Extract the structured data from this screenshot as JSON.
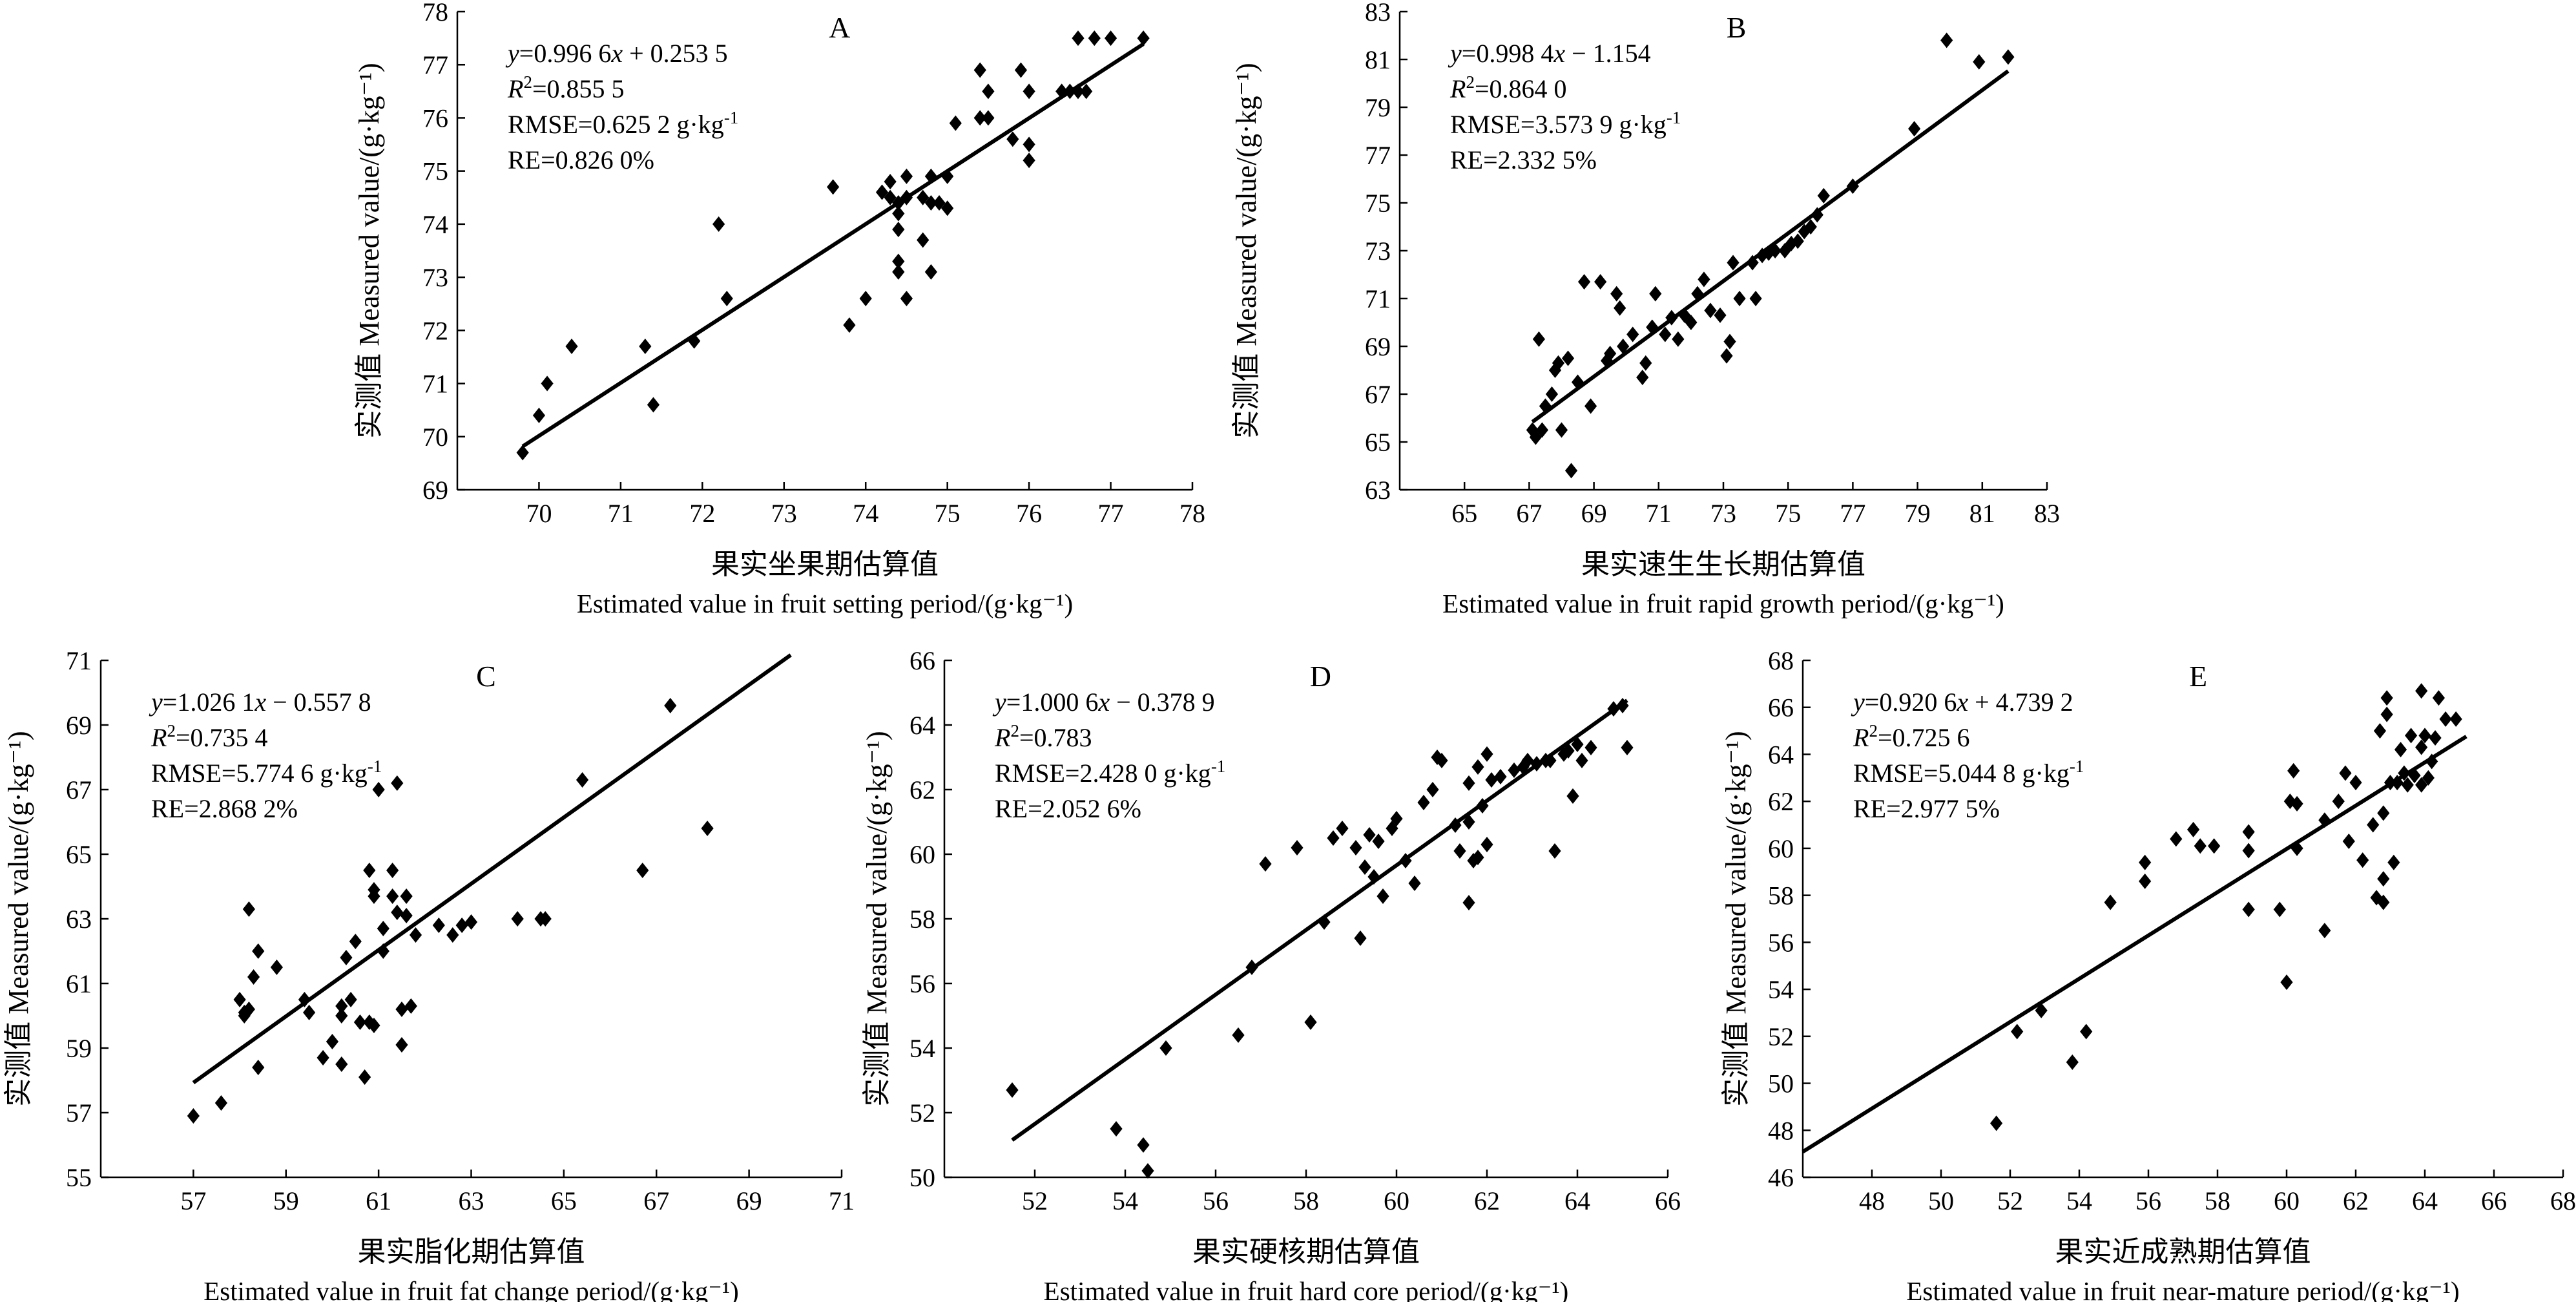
{
  "chart_data": [
    {
      "id": "A",
      "type": "scatter",
      "panel_letter": "A",
      "title": "",
      "ylabel": "实测值 Measured value/(g·kg⁻¹)",
      "xlabel_cn": "果实坐果期估算值",
      "xlabel_en": "Estimated value in fruit setting period/(g·kg⁻¹)",
      "xlim": [
        69,
        78
      ],
      "ylim": [
        69,
        78
      ],
      "xticks": [
        70,
        71,
        72,
        73,
        74,
        75,
        76,
        77,
        78
      ],
      "yticks": [
        69,
        70,
        71,
        72,
        73,
        74,
        75,
        76,
        77,
        78
      ],
      "fit": {
        "slope": 0.9966,
        "intercept": 0.2535,
        "x_range": [
          69.8,
          77.4
        ]
      },
      "annotations": [
        "y=0.996 6x + 0.253 5",
        "R2=0.855 5",
        "RMSE=0.625 2 g·kg-1",
        "RE=0.826 0%"
      ],
      "points": [
        [
          69.8,
          69.7
        ],
        [
          70.0,
          70.4
        ],
        [
          70.1,
          71.0
        ],
        [
          70.4,
          71.7
        ],
        [
          71.3,
          71.7
        ],
        [
          71.4,
          70.6
        ],
        [
          71.9,
          71.8
        ],
        [
          72.2,
          74.0
        ],
        [
          72.3,
          72.6
        ],
        [
          73.6,
          74.7
        ],
        [
          73.8,
          72.1
        ],
        [
          74.0,
          72.6
        ],
        [
          74.2,
          74.6
        ],
        [
          74.3,
          74.8
        ],
        [
          74.3,
          74.5
        ],
        [
          74.4,
          74.4
        ],
        [
          74.4,
          74.2
        ],
        [
          74.4,
          73.9
        ],
        [
          74.4,
          73.3
        ],
        [
          74.4,
          73.1
        ],
        [
          74.5,
          74.5
        ],
        [
          74.5,
          72.6
        ],
        [
          74.5,
          74.9
        ],
        [
          74.7,
          73.7
        ],
        [
          74.7,
          74.5
        ],
        [
          74.8,
          74.9
        ],
        [
          74.8,
          74.4
        ],
        [
          74.8,
          73.1
        ],
        [
          74.9,
          74.4
        ],
        [
          75.0,
          74.9
        ],
        [
          75.0,
          74.3
        ],
        [
          75.1,
          75.9
        ],
        [
          75.4,
          76.9
        ],
        [
          75.4,
          76.0
        ],
        [
          75.5,
          76.5
        ],
        [
          75.5,
          76.0
        ],
        [
          75.8,
          75.6
        ],
        [
          75.9,
          76.9
        ],
        [
          76.0,
          75.5
        ],
        [
          76.0,
          75.2
        ],
        [
          76.0,
          76.5
        ],
        [
          76.4,
          76.5
        ],
        [
          76.5,
          76.5
        ],
        [
          76.6,
          77.5
        ],
        [
          76.6,
          76.5
        ],
        [
          76.7,
          76.5
        ],
        [
          76.8,
          77.5
        ],
        [
          77.0,
          77.5
        ],
        [
          77.4,
          77.5
        ]
      ]
    },
    {
      "id": "B",
      "type": "scatter",
      "panel_letter": "B",
      "title": "",
      "ylabel": "实测值 Measured value/(g·kg⁻¹)",
      "xlabel_cn": "果实速生生长期估算值",
      "xlabel_en": "Estimated value in fruit rapid growth period/(g·kg⁻¹)",
      "xlim": [
        63,
        83
      ],
      "ylim": [
        63,
        83
      ],
      "xticks": [
        65,
        67,
        69,
        71,
        73,
        75,
        77,
        79,
        81,
        83
      ],
      "yticks": [
        63,
        65,
        67,
        69,
        71,
        73,
        75,
        77,
        79,
        81,
        83
      ],
      "fit": {
        "slope": 0.9984,
        "intercept": -1.154,
        "x_range": [
          67.1,
          81.8
        ]
      },
      "annotations": [
        "y=0.998 4x − 1.154",
        "R2=0.864 0",
        "RMSE=3.573 9 g·kg-1",
        "RE=2.332 5%"
      ],
      "points": [
        [
          67.1,
          65.5
        ],
        [
          67.2,
          65.2
        ],
        [
          67.3,
          69.3
        ],
        [
          67.4,
          65.5
        ],
        [
          67.5,
          66.5
        ],
        [
          67.7,
          67.0
        ],
        [
          67.8,
          68.0
        ],
        [
          67.9,
          68.3
        ],
        [
          68.0,
          65.5
        ],
        [
          68.2,
          68.5
        ],
        [
          68.3,
          63.8
        ],
        [
          68.5,
          67.5
        ],
        [
          68.7,
          71.7
        ],
        [
          68.9,
          66.5
        ],
        [
          69.2,
          71.7
        ],
        [
          69.4,
          68.4
        ],
        [
          69.5,
          68.7
        ],
        [
          69.7,
          71.2
        ],
        [
          69.8,
          70.6
        ],
        [
          69.9,
          69.0
        ],
        [
          70.2,
          69.5
        ],
        [
          70.5,
          67.7
        ],
        [
          70.6,
          68.3
        ],
        [
          70.8,
          69.8
        ],
        [
          70.9,
          71.2
        ],
        [
          71.2,
          69.5
        ],
        [
          71.4,
          70.2
        ],
        [
          71.6,
          69.3
        ],
        [
          71.8,
          70.3
        ],
        [
          72.0,
          70.0
        ],
        [
          72.2,
          71.2
        ],
        [
          72.4,
          71.8
        ],
        [
          72.6,
          70.5
        ],
        [
          72.9,
          70.3
        ],
        [
          73.1,
          68.6
        ],
        [
          73.2,
          69.2
        ],
        [
          73.3,
          72.5
        ],
        [
          73.5,
          71.0
        ],
        [
          73.9,
          72.5
        ],
        [
          74.0,
          71.0
        ],
        [
          74.2,
          72.8
        ],
        [
          74.4,
          72.9
        ],
        [
          74.6,
          73.0
        ],
        [
          74.9,
          73.0
        ],
        [
          75.1,
          73.3
        ],
        [
          75.3,
          73.4
        ],
        [
          75.5,
          73.8
        ],
        [
          75.7,
          74.0
        ],
        [
          75.9,
          74.5
        ],
        [
          76.1,
          75.3
        ],
        [
          77.0,
          75.7
        ],
        [
          78.9,
          78.1
        ],
        [
          79.9,
          81.8
        ],
        [
          80.9,
          80.9
        ],
        [
          81.8,
          81.1
        ]
      ]
    },
    {
      "id": "C",
      "type": "scatter",
      "panel_letter": "C",
      "title": "",
      "ylabel": "实测值 Measured value/(g·kg⁻¹)",
      "xlabel_cn": "果实脂化期估算值",
      "xlabel_en": "Estimated value in fruit fat change period/(g·kg⁻¹)",
      "xlim": [
        55,
        71
      ],
      "ylim": [
        55,
        71
      ],
      "xticks": [
        57,
        59,
        61,
        63,
        65,
        67,
        69,
        71
      ],
      "yticks": [
        55,
        57,
        59,
        61,
        63,
        65,
        67,
        69,
        71
      ],
      "fit": {
        "slope": 1.0261,
        "intercept": -0.5578,
        "x_range": [
          57.0,
          69.9
        ]
      },
      "annotations": [
        "y=1.026 1x − 0.557 8",
        "R2=0.735 4",
        "RMSE=5.774 6 g·kg-1",
        "RE=2.868 2%"
      ],
      "points": [
        [
          57.0,
          56.9
        ],
        [
          57.6,
          57.3
        ],
        [
          58.0,
          60.5
        ],
        [
          58.1,
          60.1
        ],
        [
          58.1,
          60.0
        ],
        [
          58.2,
          60.2
        ],
        [
          58.2,
          63.3
        ],
        [
          58.3,
          61.2
        ],
        [
          58.4,
          62.0
        ],
        [
          58.4,
          58.4
        ],
        [
          58.8,
          61.5
        ],
        [
          59.4,
          60.5
        ],
        [
          59.5,
          60.1
        ],
        [
          59.8,
          58.7
        ],
        [
          60.0,
          59.2
        ],
        [
          60.2,
          60.3
        ],
        [
          60.2,
          60.0
        ],
        [
          60.2,
          58.5
        ],
        [
          60.3,
          61.8
        ],
        [
          60.4,
          60.5
        ],
        [
          60.5,
          62.3
        ],
        [
          60.6,
          59.8
        ],
        [
          60.7,
          58.1
        ],
        [
          60.8,
          64.5
        ],
        [
          60.8,
          59.8
        ],
        [
          60.9,
          63.7
        ],
        [
          60.9,
          59.7
        ],
        [
          60.9,
          63.9
        ],
        [
          61.0,
          67.0
        ],
        [
          61.1,
          62.7
        ],
        [
          61.1,
          62.0
        ],
        [
          61.3,
          63.7
        ],
        [
          61.3,
          64.5
        ],
        [
          61.4,
          67.2
        ],
        [
          61.4,
          63.2
        ],
        [
          61.5,
          59.1
        ],
        [
          61.5,
          60.2
        ],
        [
          61.6,
          63.7
        ],
        [
          61.6,
          63.1
        ],
        [
          61.7,
          60.3
        ],
        [
          61.8,
          62.5
        ],
        [
          62.3,
          62.8
        ],
        [
          62.6,
          62.5
        ],
        [
          62.8,
          62.8
        ],
        [
          63.0,
          62.9
        ],
        [
          64.0,
          63.0
        ],
        [
          64.5,
          63.0
        ],
        [
          64.6,
          63.0
        ],
        [
          65.4,
          67.3
        ],
        [
          66.7,
          64.5
        ],
        [
          67.3,
          69.6
        ],
        [
          68.1,
          65.8
        ]
      ]
    },
    {
      "id": "D",
      "type": "scatter",
      "panel_letter": "D",
      "title": "",
      "ylabel": "实测值 Measured value/(g·kg⁻¹)",
      "xlabel_cn": "果实硬核期估算值",
      "xlabel_en": "Estimated value in fruit hard core period/(g·kg⁻¹)",
      "xlim": [
        50,
        66
      ],
      "ylim": [
        50,
        66
      ],
      "xticks": [
        52,
        54,
        56,
        58,
        60,
        62,
        64,
        66
      ],
      "yticks": [
        50,
        52,
        54,
        56,
        58,
        60,
        62,
        64,
        66
      ],
      "fit": {
        "slope": 1.0006,
        "intercept": -0.3789,
        "x_range": [
          51.5,
          65.1
        ]
      },
      "annotations": [
        "y=1.000 6x − 0.378 9",
        "R2=0.783",
        "RMSE=2.428 0 g·kg-1",
        "RE=2.052 6%"
      ],
      "points": [
        [
          51.5,
          52.7
        ],
        [
          53.8,
          51.5
        ],
        [
          54.4,
          51.0
        ],
        [
          54.5,
          50.2
        ],
        [
          54.9,
          54.0
        ],
        [
          56.5,
          54.4
        ],
        [
          56.8,
          56.5
        ],
        [
          57.1,
          59.7
        ],
        [
          57.8,
          60.2
        ],
        [
          58.1,
          54.8
        ],
        [
          58.4,
          57.9
        ],
        [
          58.6,
          60.5
        ],
        [
          58.8,
          60.8
        ],
        [
          59.1,
          60.2
        ],
        [
          59.2,
          57.4
        ],
        [
          59.3,
          59.6
        ],
        [
          59.4,
          60.6
        ],
        [
          59.5,
          59.3
        ],
        [
          59.6,
          60.4
        ],
        [
          59.7,
          58.7
        ],
        [
          59.9,
          60.8
        ],
        [
          60.0,
          61.1
        ],
        [
          60.2,
          59.8
        ],
        [
          60.4,
          59.1
        ],
        [
          60.6,
          61.6
        ],
        [
          60.8,
          62.0
        ],
        [
          60.9,
          63.0
        ],
        [
          61.0,
          62.9
        ],
        [
          61.3,
          60.9
        ],
        [
          61.4,
          60.1
        ],
        [
          61.6,
          61.0
        ],
        [
          61.6,
          62.2
        ],
        [
          61.6,
          58.5
        ],
        [
          61.7,
          59.8
        ],
        [
          61.8,
          62.7
        ],
        [
          61.8,
          59.9
        ],
        [
          61.9,
          61.5
        ],
        [
          62.0,
          60.3
        ],
        [
          62.0,
          63.1
        ],
        [
          62.1,
          62.3
        ],
        [
          62.3,
          62.4
        ],
        [
          62.6,
          62.6
        ],
        [
          62.8,
          62.7
        ],
        [
          62.9,
          62.9
        ],
        [
          63.1,
          62.8
        ],
        [
          63.3,
          62.9
        ],
        [
          63.4,
          62.9
        ],
        [
          63.5,
          60.1
        ],
        [
          63.7,
          63.1
        ],
        [
          63.8,
          63.2
        ],
        [
          63.9,
          61.8
        ],
        [
          64.0,
          63.4
        ],
        [
          64.1,
          62.9
        ],
        [
          64.3,
          63.3
        ],
        [
          64.8,
          64.5
        ],
        [
          65.0,
          64.6
        ],
        [
          65.1,
          63.3
        ]
      ]
    },
    {
      "id": "E",
      "type": "scatter",
      "panel_letter": "E",
      "title": "",
      "ylabel": "实测值 Measured value/(g·kg⁻¹)",
      "xlabel_cn": "果实近成熟期估算值",
      "xlabel_en": "Estimated value in fruit near-mature period/(g·kg⁻¹)",
      "xlim": [
        46,
        68
      ],
      "ylim": [
        46,
        68
      ],
      "xticks": [
        48,
        50,
        52,
        54,
        56,
        58,
        60,
        62,
        64,
        66,
        68
      ],
      "yticks": [
        46,
        48,
        50,
        52,
        54,
        56,
        58,
        60,
        62,
        64,
        66,
        68
      ],
      "fit": {
        "slope": 0.9206,
        "intercept": 4.7392,
        "x_range": [
          46.0,
          65.2
        ]
      },
      "annotations": [
        "y=0.920 6x + 4.739 2",
        "R2=0.725 6",
        "RMSE=5.044 8 g·kg-1",
        "RE=2.977 5%"
      ],
      "points": [
        [
          51.6,
          48.3
        ],
        [
          52.2,
          52.2
        ],
        [
          52.9,
          53.1
        ],
        [
          53.8,
          50.9
        ],
        [
          54.2,
          52.2
        ],
        [
          54.9,
          57.7
        ],
        [
          55.9,
          58.6
        ],
        [
          55.9,
          59.4
        ],
        [
          56.8,
          60.4
        ],
        [
          57.3,
          60.8
        ],
        [
          57.5,
          60.1
        ],
        [
          57.9,
          60.1
        ],
        [
          58.9,
          60.7
        ],
        [
          58.9,
          59.9
        ],
        [
          58.9,
          57.4
        ],
        [
          59.8,
          57.4
        ],
        [
          60.0,
          54.3
        ],
        [
          60.1,
          62.0
        ],
        [
          60.2,
          63.3
        ],
        [
          60.3,
          60.0
        ],
        [
          60.3,
          61.9
        ],
        [
          61.1,
          61.2
        ],
        [
          61.1,
          56.5
        ],
        [
          61.5,
          62.0
        ],
        [
          61.7,
          63.2
        ],
        [
          61.8,
          60.3
        ],
        [
          62.0,
          62.8
        ],
        [
          62.2,
          59.5
        ],
        [
          62.5,
          61.0
        ],
        [
          62.6,
          57.9
        ],
        [
          62.7,
          65.0
        ],
        [
          62.8,
          57.7
        ],
        [
          62.8,
          58.7
        ],
        [
          62.8,
          61.5
        ],
        [
          62.9,
          66.4
        ],
        [
          62.9,
          65.7
        ],
        [
          63.0,
          62.8
        ],
        [
          63.1,
          59.4
        ],
        [
          63.2,
          62.8
        ],
        [
          63.3,
          64.2
        ],
        [
          63.4,
          63.2
        ],
        [
          63.5,
          62.7
        ],
        [
          63.6,
          64.8
        ],
        [
          63.7,
          63.1
        ],
        [
          63.9,
          62.7
        ],
        [
          63.9,
          64.3
        ],
        [
          63.9,
          66.7
        ],
        [
          64.0,
          64.8
        ],
        [
          64.1,
          63.0
        ],
        [
          64.2,
          63.7
        ],
        [
          64.3,
          64.7
        ],
        [
          64.4,
          66.4
        ],
        [
          64.6,
          65.5
        ],
        [
          64.9,
          65.5
        ]
      ]
    }
  ]
}
